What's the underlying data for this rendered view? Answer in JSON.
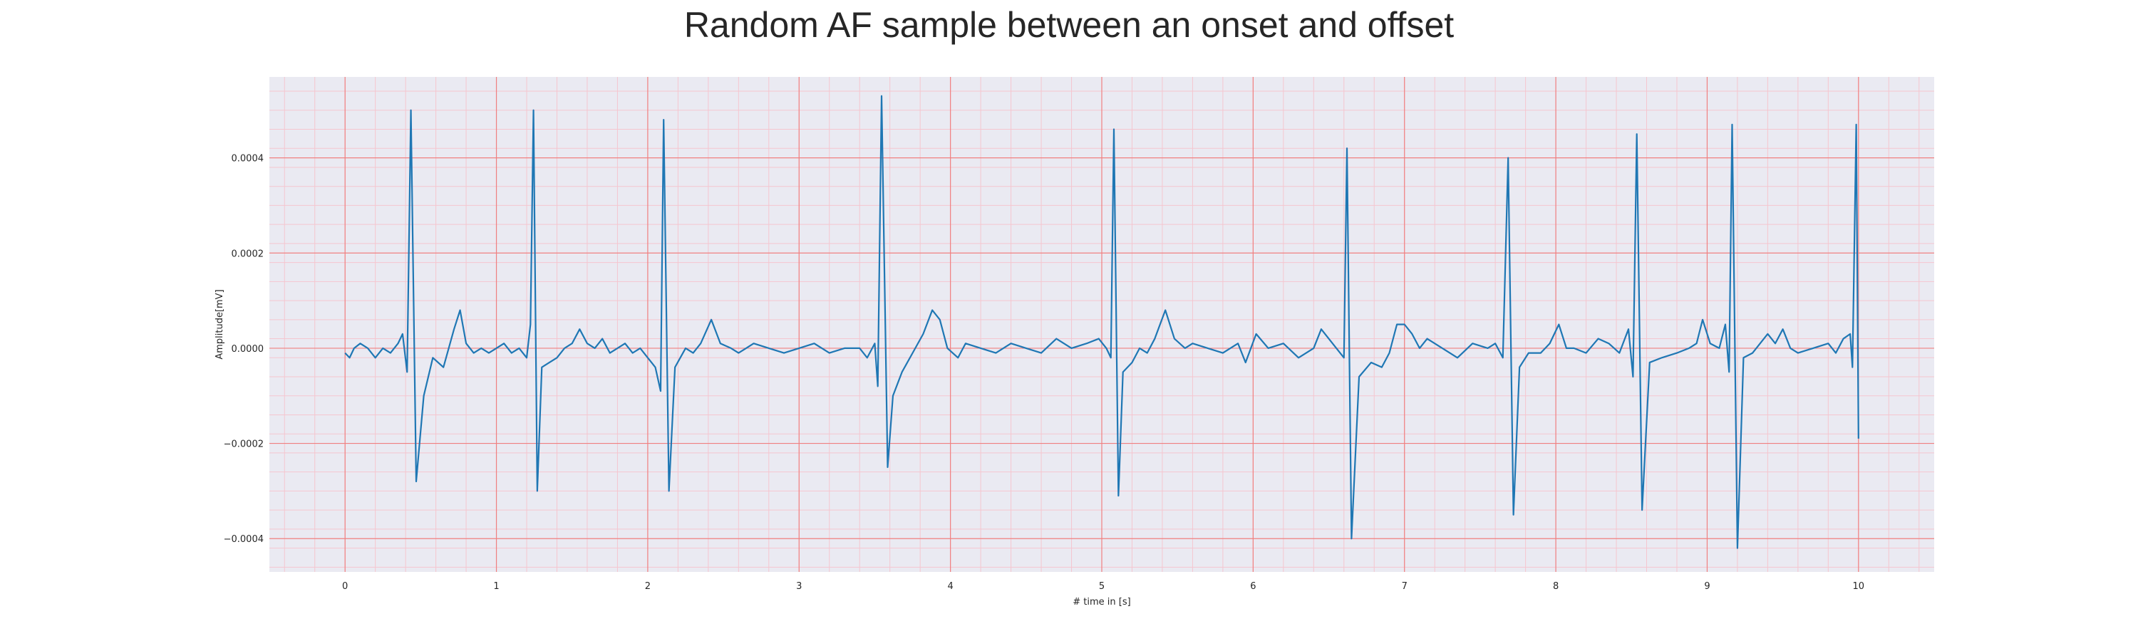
{
  "chart_data": {
    "type": "line",
    "title": "Random AF sample between an onset and offset",
    "xlabel": "# time in [s]",
    "ylabel": "Amplitude[mV]",
    "xlim": [
      -0.5,
      10.5
    ],
    "ylim": [
      -0.00047,
      0.00057
    ],
    "x_ticks": [
      0,
      1,
      2,
      3,
      4,
      5,
      6,
      7,
      8,
      9,
      10
    ],
    "y_ticks": [
      -0.0004,
      -0.0002,
      0.0,
      0.0002,
      0.0004
    ],
    "y_tick_labels": [
      "−0.0004",
      "−0.0002",
      "0.0000",
      "0.0002",
      "0.0004"
    ],
    "grid": true,
    "minor_grid": true,
    "colors": {
      "background": "#eaeaf2",
      "line": "#1f77b4",
      "major_grid": "#f08080",
      "minor_grid": "#f5c6cf"
    },
    "series": [
      {
        "points": [
          [
            0.0,
            -1e-05
          ],
          [
            0.03,
            -2e-05
          ],
          [
            0.06,
            0.0
          ],
          [
            0.1,
            1e-05
          ],
          [
            0.15,
            0.0
          ],
          [
            0.2,
            -2e-05
          ],
          [
            0.25,
            0.0
          ],
          [
            0.3,
            -1e-05
          ],
          [
            0.35,
            1e-05
          ],
          [
            0.38,
            3e-05
          ],
          [
            0.41,
            -5e-05
          ],
          [
            0.435,
            0.0005
          ],
          [
            0.47,
            -0.00028
          ],
          [
            0.52,
            -0.0001
          ],
          [
            0.58,
            -2e-05
          ],
          [
            0.65,
            -4e-05
          ],
          [
            0.72,
            4e-05
          ],
          [
            0.76,
            8e-05
          ],
          [
            0.8,
            1e-05
          ],
          [
            0.85,
            -1e-05
          ],
          [
            0.9,
            0.0
          ],
          [
            0.95,
            -1e-05
          ],
          [
            1.0,
            0.0
          ],
          [
            1.05,
            1e-05
          ],
          [
            1.1,
            -1e-05
          ],
          [
            1.15,
            0.0
          ],
          [
            1.2,
            -2e-05
          ],
          [
            1.225,
            5e-05
          ],
          [
            1.245,
            0.0005
          ],
          [
            1.27,
            -0.0003
          ],
          [
            1.3,
            -4e-05
          ],
          [
            1.35,
            -3e-05
          ],
          [
            1.4,
            -2e-05
          ],
          [
            1.45,
            0.0
          ],
          [
            1.5,
            1e-05
          ],
          [
            1.55,
            4e-05
          ],
          [
            1.6,
            1e-05
          ],
          [
            1.65,
            0.0
          ],
          [
            1.7,
            2e-05
          ],
          [
            1.75,
            -1e-05
          ],
          [
            1.8,
            0.0
          ],
          [
            1.85,
            1e-05
          ],
          [
            1.9,
            -1e-05
          ],
          [
            1.95,
            0.0
          ],
          [
            2.0,
            -2e-05
          ],
          [
            2.05,
            -4e-05
          ],
          [
            2.085,
            -9e-05
          ],
          [
            2.105,
            0.00048
          ],
          [
            2.14,
            -0.0003
          ],
          [
            2.18,
            -4e-05
          ],
          [
            2.25,
            0.0
          ],
          [
            2.3,
            -1e-05
          ],
          [
            2.35,
            1e-05
          ],
          [
            2.42,
            6e-05
          ],
          [
            2.48,
            1e-05
          ],
          [
            2.55,
            0.0
          ],
          [
            2.6,
            -1e-05
          ],
          [
            2.65,
            0.0
          ],
          [
            2.7,
            1e-05
          ],
          [
            2.8,
            0.0
          ],
          [
            2.9,
            -1e-05
          ],
          [
            3.0,
            0.0
          ],
          [
            3.1,
            1e-05
          ],
          [
            3.2,
            -1e-05
          ],
          [
            3.3,
            0.0
          ],
          [
            3.4,
            0.0
          ],
          [
            3.45,
            -2e-05
          ],
          [
            3.5,
            1e-05
          ],
          [
            3.52,
            -8e-05
          ],
          [
            3.545,
            0.00053
          ],
          [
            3.585,
            -0.00025
          ],
          [
            3.62,
            -0.0001
          ],
          [
            3.68,
            -5e-05
          ],
          [
            3.75,
            -1e-05
          ],
          [
            3.82,
            3e-05
          ],
          [
            3.88,
            8e-05
          ],
          [
            3.93,
            6e-05
          ],
          [
            3.98,
            0.0
          ],
          [
            4.05,
            -2e-05
          ],
          [
            4.1,
            1e-05
          ],
          [
            4.2,
            0.0
          ],
          [
            4.3,
            -1e-05
          ],
          [
            4.4,
            1e-05
          ],
          [
            4.5,
            0.0
          ],
          [
            4.6,
            -1e-05
          ],
          [
            4.7,
            2e-05
          ],
          [
            4.8,
            0.0
          ],
          [
            4.9,
            1e-05
          ],
          [
            4.98,
            2e-05
          ],
          [
            5.03,
            0.0
          ],
          [
            5.06,
            -2e-05
          ],
          [
            5.08,
            0.00046
          ],
          [
            5.11,
            -0.00031
          ],
          [
            5.14,
            -5e-05
          ],
          [
            5.2,
            -3e-05
          ],
          [
            5.25,
            0.0
          ],
          [
            5.3,
            -1e-05
          ],
          [
            5.35,
            2e-05
          ],
          [
            5.42,
            8e-05
          ],
          [
            5.48,
            2e-05
          ],
          [
            5.55,
            0.0
          ],
          [
            5.6,
            1e-05
          ],
          [
            5.7,
            0.0
          ],
          [
            5.8,
            -1e-05
          ],
          [
            5.9,
            1e-05
          ],
          [
            5.95,
            -3e-05
          ],
          [
            6.02,
            3e-05
          ],
          [
            6.1,
            0.0
          ],
          [
            6.2,
            1e-05
          ],
          [
            6.3,
            -2e-05
          ],
          [
            6.4,
            0.0
          ],
          [
            6.45,
            4e-05
          ],
          [
            6.5,
            2e-05
          ],
          [
            6.55,
            0.0
          ],
          [
            6.6,
            -2e-05
          ],
          [
            6.62,
            0.00042
          ],
          [
            6.65,
            -0.0004
          ],
          [
            6.7,
            -6e-05
          ],
          [
            6.78,
            -3e-05
          ],
          [
            6.85,
            -4e-05
          ],
          [
            6.9,
            -1e-05
          ],
          [
            6.95,
            5e-05
          ],
          [
            7.0,
            5e-05
          ],
          [
            7.05,
            3e-05
          ],
          [
            7.1,
            0.0
          ],
          [
            7.15,
            2e-05
          ],
          [
            7.25,
            0.0
          ],
          [
            7.35,
            -2e-05
          ],
          [
            7.45,
            1e-05
          ],
          [
            7.55,
            0.0
          ],
          [
            7.6,
            1e-05
          ],
          [
            7.65,
            -2e-05
          ],
          [
            7.685,
            0.0004
          ],
          [
            7.72,
            -0.00035
          ],
          [
            7.76,
            -4e-05
          ],
          [
            7.82,
            -1e-05
          ],
          [
            7.9,
            -1e-05
          ],
          [
            7.96,
            1e-05
          ],
          [
            8.02,
            5e-05
          ],
          [
            8.07,
            0.0
          ],
          [
            8.12,
            0.0
          ],
          [
            8.2,
            -1e-05
          ],
          [
            8.28,
            2e-05
          ],
          [
            8.35,
            1e-05
          ],
          [
            8.42,
            -1e-05
          ],
          [
            8.48,
            4e-05
          ],
          [
            8.51,
            -6e-05
          ],
          [
            8.535,
            0.00045
          ],
          [
            8.57,
            -0.00034
          ],
          [
            8.62,
            -3e-05
          ],
          [
            8.7,
            -2e-05
          ],
          [
            8.8,
            -1e-05
          ],
          [
            8.88,
            0.0
          ],
          [
            8.93,
            1e-05
          ],
          [
            8.97,
            6e-05
          ],
          [
            9.02,
            1e-05
          ],
          [
            9.08,
            0.0
          ],
          [
            9.12,
            5e-05
          ],
          [
            9.145,
            -5e-05
          ],
          [
            9.165,
            0.00047
          ],
          [
            9.2,
            -0.00042
          ],
          [
            9.24,
            -2e-05
          ],
          [
            9.3,
            -1e-05
          ],
          [
            9.4,
            3e-05
          ],
          [
            9.45,
            1e-05
          ],
          [
            9.5,
            4e-05
          ],
          [
            9.55,
            0.0
          ],
          [
            9.6,
            -1e-05
          ],
          [
            9.7,
            0.0
          ],
          [
            9.8,
            1e-05
          ],
          [
            9.85,
            -1e-05
          ],
          [
            9.9,
            2e-05
          ],
          [
            9.945,
            3e-05
          ],
          [
            9.96,
            -4e-05
          ],
          [
            9.985,
            0.00047
          ],
          [
            10.0,
            -0.00019
          ]
        ]
      }
    ]
  }
}
